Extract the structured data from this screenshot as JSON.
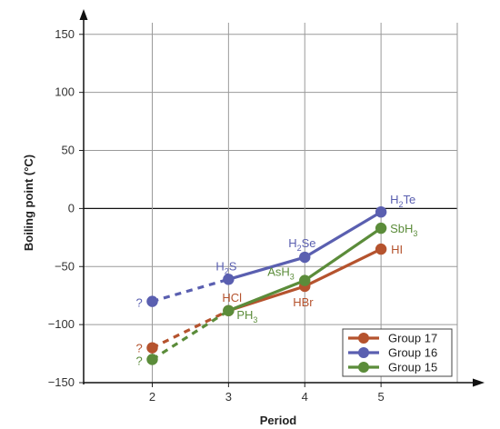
{
  "chart_data": {
    "type": "line",
    "xlabel": "Period",
    "ylabel": "Boiling point (°C)",
    "x": [
      2,
      3,
      4,
      5
    ],
    "xlim": [
      1.1,
      6
    ],
    "ylim": [
      -150,
      160
    ],
    "yticks": [
      150,
      100,
      50,
      0,
      -50,
      -100,
      -150
    ],
    "grid": true,
    "legend_position": "bottom-right",
    "series": [
      {
        "name": "Group 17",
        "color": "#b5532e",
        "points": [
          {
            "x": 2,
            "y": -120,
            "label": "?",
            "estimated": true
          },
          {
            "x": 3,
            "y": -88,
            "label": "HCl"
          },
          {
            "x": 4,
            "y": -67,
            "label": "HBr"
          },
          {
            "x": 5,
            "y": -35,
            "label": "HI"
          }
        ]
      },
      {
        "name": "Group 16",
        "color": "#5a5fb0",
        "points": [
          {
            "x": 2,
            "y": -80,
            "label": "?",
            "estimated": true
          },
          {
            "x": 3,
            "y": -61,
            "label": "H",
            "label_sub": "2",
            "label_post": "S"
          },
          {
            "x": 4,
            "y": -42,
            "label": "H",
            "label_sub": "2",
            "label_post": "Se"
          },
          {
            "x": 5,
            "y": -3,
            "label": "H",
            "label_sub": "2",
            "label_post": "Te"
          }
        ]
      },
      {
        "name": "Group 15",
        "color": "#5b8c3a",
        "points": [
          {
            "x": 2,
            "y": -130,
            "label": "?",
            "estimated": true
          },
          {
            "x": 3,
            "y": -88,
            "label": "PH",
            "label_sub": "3"
          },
          {
            "x": 4,
            "y": -62,
            "label": "AsH",
            "label_sub": "3"
          },
          {
            "x": 5,
            "y": -17,
            "label": "SbH",
            "label_sub": "3"
          }
        ]
      }
    ],
    "legend": [
      {
        "name": "Group 17",
        "color": "#b5532e"
      },
      {
        "name": "Group 16",
        "color": "#5a5fb0"
      },
      {
        "name": "Group 15",
        "color": "#5b8c3a"
      }
    ]
  }
}
